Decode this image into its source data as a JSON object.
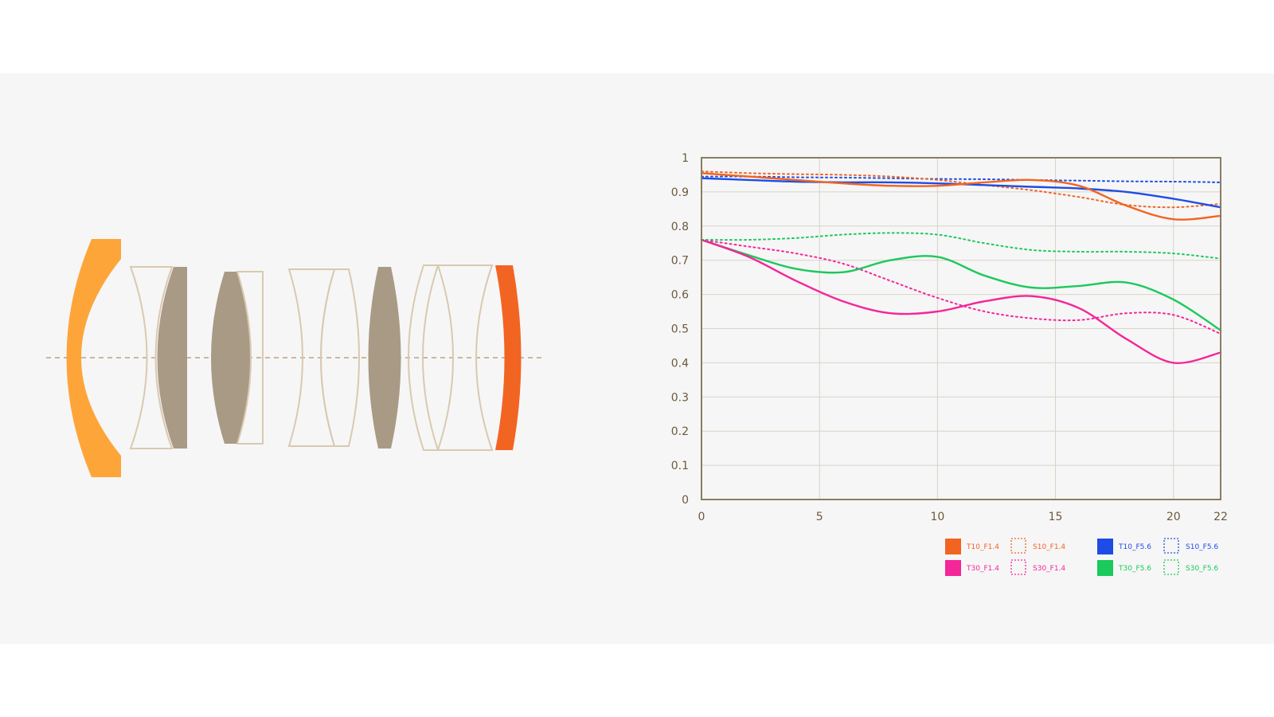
{
  "lens_diagram": {
    "colors": {
      "front": "#fea53a",
      "rear": "#f26422",
      "cemented": "#a99a86",
      "outline": "#d9c9b0",
      "axis": "#cdb79f"
    }
  },
  "chart_data": {
    "type": "line",
    "x": [
      0,
      2,
      4,
      6,
      8,
      10,
      12,
      14,
      16,
      18,
      20,
      22
    ],
    "xticks": [
      "0",
      "5",
      "10",
      "15",
      "20",
      "22"
    ],
    "xtick_values": [
      0,
      5,
      10,
      15,
      20,
      22
    ],
    "yticks": [
      "0",
      "0.1",
      "0.2",
      "0.3",
      "0.4",
      "0.5",
      "0.6",
      "0.7",
      "0.8",
      "0.9",
      "1"
    ],
    "xlim": [
      0,
      22
    ],
    "ylim": [
      0,
      1
    ],
    "grid": true,
    "legend_position": "bottom-right",
    "series": [
      {
        "name": "T10_F1.4",
        "color": "#f26422",
        "dash": false,
        "values": [
          0.955,
          0.945,
          0.935,
          0.925,
          0.918,
          0.918,
          0.928,
          0.935,
          0.918,
          0.86,
          0.82,
          0.83
        ]
      },
      {
        "name": "S10_F1.4",
        "color": "#f26422",
        "dash": true,
        "values": [
          0.96,
          0.955,
          0.952,
          0.95,
          0.945,
          0.935,
          0.92,
          0.905,
          0.885,
          0.862,
          0.855,
          0.865
        ]
      },
      {
        "name": "T10_F5.6",
        "color": "#1d4de6",
        "dash": false,
        "values": [
          0.94,
          0.935,
          0.93,
          0.928,
          0.928,
          0.925,
          0.92,
          0.915,
          0.91,
          0.9,
          0.88,
          0.855
        ]
      },
      {
        "name": "S10_F5.6",
        "color": "#1d4de6",
        "dash": true,
        "values": [
          0.945,
          0.945,
          0.943,
          0.942,
          0.94,
          0.938,
          0.937,
          0.935,
          0.933,
          0.931,
          0.93,
          0.928
        ]
      },
      {
        "name": "T30_F1.4",
        "color": "#f5259a",
        "dash": false,
        "values": [
          0.76,
          0.71,
          0.64,
          0.58,
          0.545,
          0.55,
          0.58,
          0.595,
          0.56,
          0.47,
          0.4,
          0.43
        ]
      },
      {
        "name": "S30_F1.4",
        "color": "#f5259a",
        "dash": true,
        "values": [
          0.76,
          0.74,
          0.72,
          0.69,
          0.64,
          0.59,
          0.55,
          0.53,
          0.525,
          0.545,
          0.54,
          0.485
        ]
      },
      {
        "name": "T30_F5.6",
        "color": "#1bc95c",
        "dash": false,
        "values": [
          0.76,
          0.715,
          0.675,
          0.665,
          0.7,
          0.71,
          0.655,
          0.62,
          0.625,
          0.635,
          0.585,
          0.495
        ]
      },
      {
        "name": "S30_F5.6",
        "color": "#1bc95c",
        "dash": true,
        "values": [
          0.76,
          0.76,
          0.765,
          0.775,
          0.78,
          0.775,
          0.75,
          0.73,
          0.725,
          0.725,
          0.72,
          0.705
        ]
      }
    ]
  }
}
